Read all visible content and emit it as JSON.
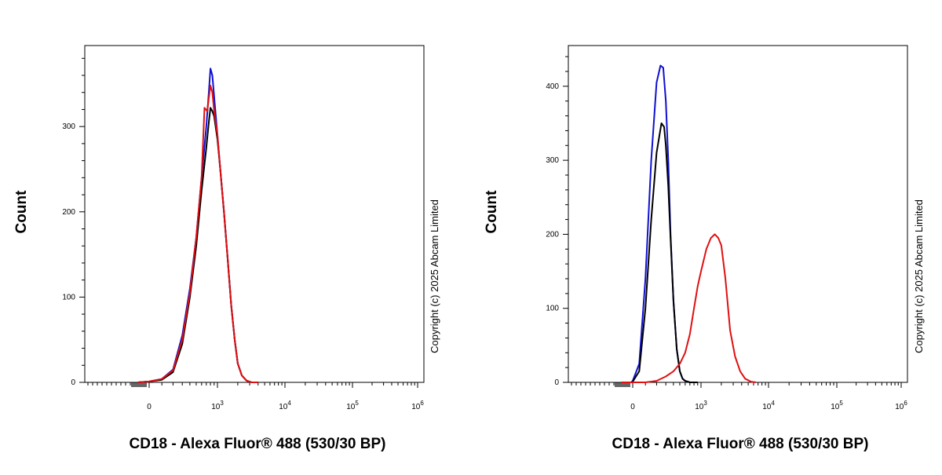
{
  "chart_data": [
    {
      "type": "line",
      "title": "",
      "xlabel": "CD18 - Alexa Fluor® 488 (530/30 BP)",
      "ylabel": "Count",
      "ylim": [
        0,
        395
      ],
      "yticks": [
        0,
        100,
        200,
        300
      ],
      "xscale": "biexponential",
      "xticks": [
        {
          "base": "0",
          "exp": ""
        },
        {
          "base": "10",
          "exp": "3"
        },
        {
          "base": "10",
          "exp": "4"
        },
        {
          "base": "10",
          "exp": "5"
        },
        {
          "base": "10",
          "exp": "6"
        }
      ],
      "copyright": "Copyright (c) 2025 Abcam Limited",
      "series": [
        {
          "name": "blue",
          "color": "#1010d0",
          "x": [
            -150,
            0,
            100,
            200,
            300,
            400,
            500,
            600,
            700,
            760,
            800,
            850,
            900,
            1000,
            1100,
            1250,
            1400,
            1600,
            1800,
            2000,
            2300,
            2700,
            3200,
            4000
          ],
          "y": [
            0,
            1,
            4,
            15,
            55,
            110,
            170,
            240,
            300,
            340,
            368,
            360,
            335,
            290,
            250,
            200,
            150,
            90,
            50,
            22,
            8,
            2,
            0,
            0
          ]
        },
        {
          "name": "black",
          "color": "#000000",
          "x": [
            -150,
            0,
            100,
            200,
            300,
            400,
            500,
            600,
            700,
            760,
            800,
            850,
            900,
            1000,
            1100,
            1250,
            1400,
            1600,
            1800,
            2000,
            2300,
            2700,
            3200,
            4000
          ],
          "y": [
            0,
            1,
            3,
            12,
            45,
            100,
            160,
            225,
            275,
            305,
            322,
            318,
            312,
            285,
            250,
            200,
            150,
            90,
            50,
            22,
            8,
            2,
            0,
            0
          ]
        },
        {
          "name": "red",
          "color": "#e01010",
          "x": [
            -150,
            0,
            100,
            200,
            300,
            400,
            500,
            600,
            660,
            720,
            800,
            850,
            900,
            1000,
            1100,
            1250,
            1400,
            1600,
            1800,
            2000,
            2300,
            2700,
            3200,
            4000
          ],
          "y": [
            0,
            1,
            4,
            14,
            50,
            105,
            170,
            240,
            322,
            318,
            348,
            340,
            318,
            290,
            250,
            200,
            150,
            90,
            50,
            22,
            8,
            2,
            0,
            0
          ]
        }
      ]
    },
    {
      "type": "line",
      "title": "",
      "xlabel": "CD18 - Alexa Fluor® 488 (530/30 BP)",
      "ylabel": "Count",
      "ylim": [
        0,
        455
      ],
      "yticks": [
        0,
        100,
        200,
        300,
        400
      ],
      "xscale": "biexponential",
      "xticks": [
        {
          "base": "0",
          "exp": ""
        },
        {
          "base": "10",
          "exp": "3"
        },
        {
          "base": "10",
          "exp": "4"
        },
        {
          "base": "10",
          "exp": "5"
        },
        {
          "base": "10",
          "exp": "6"
        }
      ],
      "copyright": "Copyright (c) 2025 Abcam Limited",
      "series": [
        {
          "name": "blue",
          "color": "#1010d0",
          "x": [
            -150,
            -20,
            0,
            50,
            100,
            150,
            200,
            240,
            270,
            300,
            330,
            360,
            400,
            450,
            500,
            550,
            600,
            700,
            900
          ],
          "y": [
            0,
            0,
            2,
            25,
            140,
            300,
            405,
            428,
            425,
            380,
            300,
            200,
            110,
            45,
            15,
            5,
            2,
            0,
            0
          ]
        },
        {
          "name": "black",
          "color": "#000000",
          "x": [
            -150,
            -20,
            0,
            50,
            100,
            150,
            200,
            250,
            280,
            300,
            330,
            360,
            400,
            450,
            500,
            550,
            600,
            700,
            900
          ],
          "y": [
            0,
            0,
            1,
            15,
            100,
            220,
            310,
            350,
            345,
            320,
            265,
            195,
            110,
            45,
            15,
            5,
            2,
            0,
            0
          ]
        },
        {
          "name": "red",
          "color": "#e01010",
          "x": [
            -150,
            100,
            200,
            300,
            400,
            500,
            600,
            700,
            800,
            900,
            1000,
            1200,
            1400,
            1600,
            1800,
            2000,
            2300,
            2700,
            3200,
            3800,
            4500,
            5500,
            6500
          ],
          "y": [
            0,
            0,
            2,
            8,
            15,
            25,
            40,
            65,
            100,
            130,
            150,
            180,
            195,
            200,
            195,
            185,
            140,
            70,
            35,
            15,
            5,
            1,
            0
          ]
        }
      ]
    }
  ]
}
